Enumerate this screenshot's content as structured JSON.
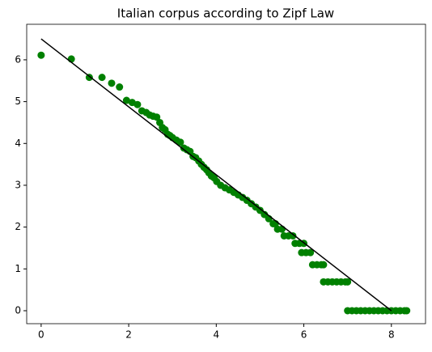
{
  "chart_data": {
    "type": "scatter",
    "title": "Italian corpus according to Zipf Law",
    "xlim": [
      -0.33,
      8.78
    ],
    "ylim": [
      -0.31,
      6.85
    ],
    "xticks": [
      0,
      2,
      4,
      6,
      8
    ],
    "yticks": [
      0,
      1,
      2,
      3,
      4,
      5,
      6
    ],
    "scatter": {
      "color": "#008000",
      "x": [
        0,
        0.69,
        1.1,
        1.39,
        1.61,
        1.79,
        1.95,
        2.08,
        2.2,
        2.3,
        2.4,
        2.48,
        2.56,
        2.64,
        2.71,
        2.77,
        2.83,
        2.89,
        2.94,
        3.0,
        3.09,
        3.18,
        3.26,
        3.33,
        3.4,
        3.47,
        3.53,
        3.6,
        3.66,
        3.72,
        3.78,
        3.83,
        3.89,
        3.95,
        4.01,
        4.1,
        4.2,
        4.3,
        4.4,
        4.5,
        4.6,
        4.7,
        4.8,
        4.9,
        5.0,
        5.1,
        5.2,
        5.3,
        5.35,
        5.4,
        5.5,
        5.55,
        5.65,
        5.75,
        5.8,
        5.9,
        6.0,
        5.95,
        6.05,
        6.15,
        6.2,
        6.3,
        6.4,
        6.45,
        6.45,
        6.55,
        6.65,
        6.75,
        6.85,
        6.95,
        7.0,
        7.0,
        7.1,
        7.2,
        7.3,
        7.4,
        7.5,
        7.6,
        7.7,
        7.8,
        7.9,
        8.0,
        8.1,
        8.2,
        8.3,
        8.35
      ],
      "y": [
        6.11,
        6.02,
        5.58,
        5.58,
        5.44,
        5.35,
        5.03,
        4.98,
        4.93,
        4.78,
        4.74,
        4.68,
        4.65,
        4.63,
        4.5,
        4.38,
        4.33,
        4.22,
        4.19,
        4.14,
        4.08,
        4.03,
        3.89,
        3.85,
        3.81,
        3.69,
        3.66,
        3.58,
        3.5,
        3.43,
        3.37,
        3.3,
        3.22,
        3.18,
        3.09,
        3.0,
        2.94,
        2.89,
        2.83,
        2.77,
        2.71,
        2.64,
        2.56,
        2.48,
        2.4,
        2.3,
        2.2,
        2.08,
        2.08,
        1.95,
        1.95,
        1.79,
        1.79,
        1.79,
        1.61,
        1.61,
        1.61,
        1.39,
        1.39,
        1.39,
        1.1,
        1.1,
        1.1,
        1.1,
        0.69,
        0.69,
        0.69,
        0.69,
        0.69,
        0.69,
        0.69,
        0,
        0,
        0,
        0,
        0,
        0,
        0,
        0,
        0,
        0,
        0,
        0,
        0,
        0,
        0
      ]
    },
    "fit_line": {
      "color": "#000000",
      "x": [
        0,
        8
      ],
      "y": [
        6.5,
        0
      ]
    }
  }
}
